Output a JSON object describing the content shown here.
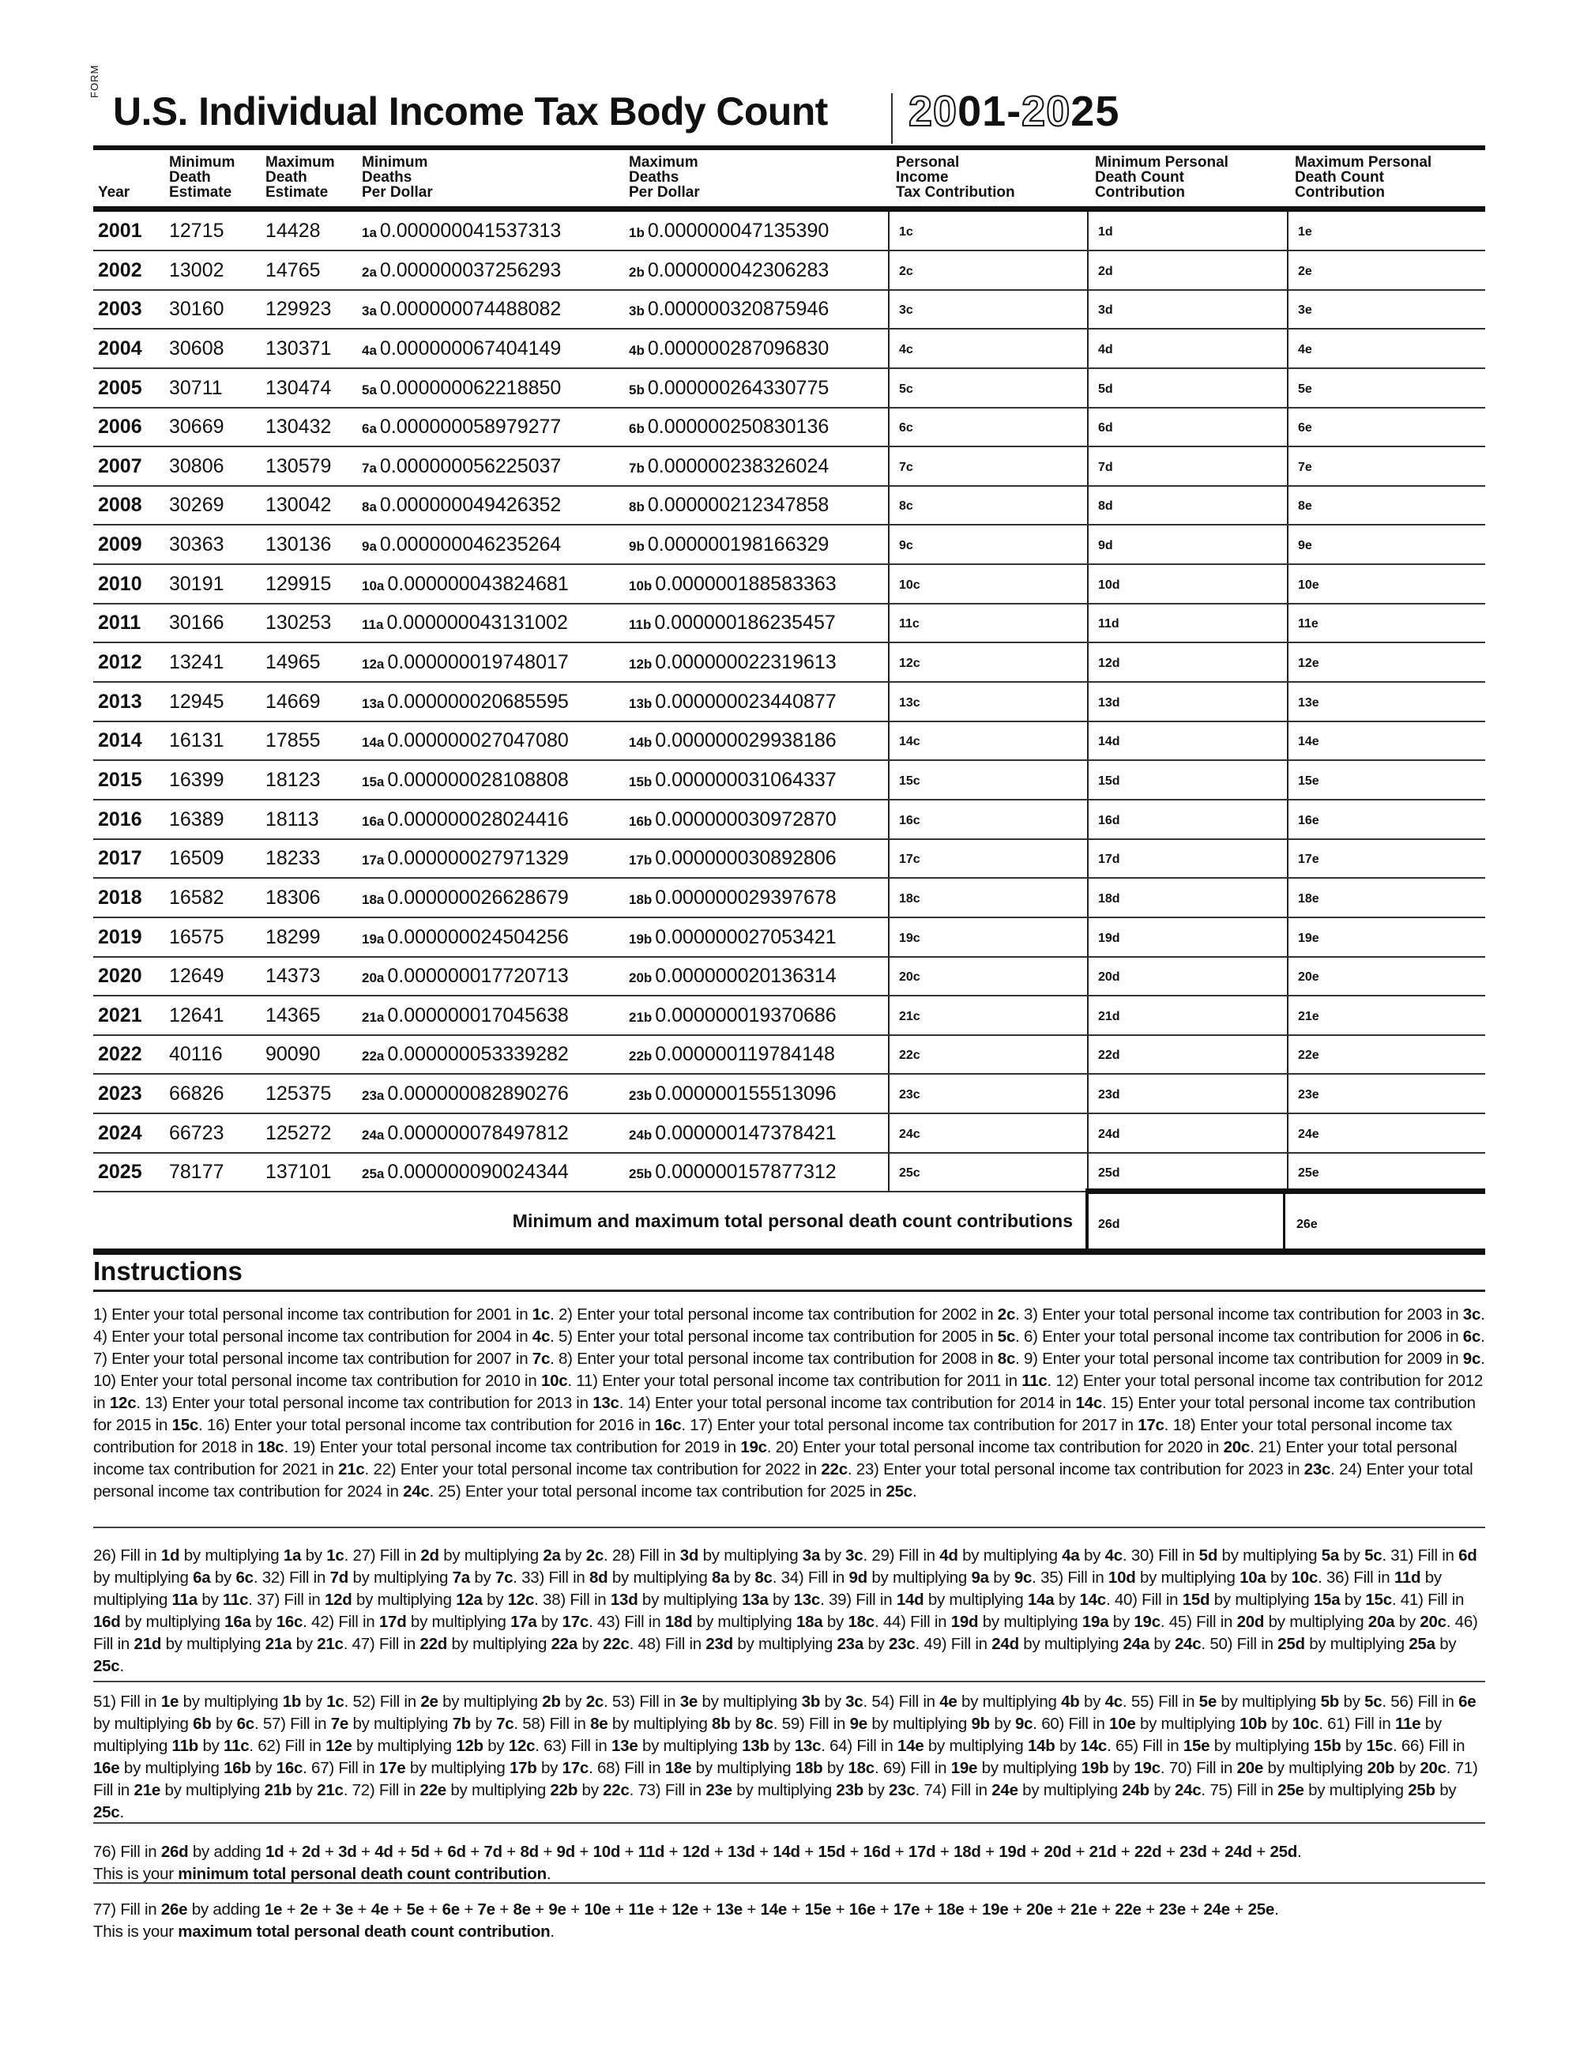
{
  "form_word": "FORM",
  "title": "U.S. Individual Income Tax Body Count",
  "title_years": "2001-2025",
  "columns": [
    "Year",
    "Minimum\nDeath\nEstimate",
    "Maximum\nDeath\nEstimate",
    "Minimum\nDeaths\nPer Dollar",
    "Maximum\nDeaths\nPer Dollar",
    "Personal\nIncome\nTax Contribution",
    "Minimum Personal\nDeath Count\nContribution",
    "Maximum Personal\nDeath Count\nContribution"
  ],
  "rows": [
    [
      "2001",
      "12715",
      "14428",
      "1a",
      "0.000000041537313",
      "1b",
      "0.000000047135390",
      "1c",
      "1d",
      "1e"
    ],
    [
      "2002",
      "13002",
      "14765",
      "2a",
      "0.000000037256293",
      "2b",
      "0.000000042306283",
      "2c",
      "2d",
      "2e"
    ],
    [
      "2003",
      "30160",
      "129923",
      "3a",
      "0.000000074488082",
      "3b",
      "0.000000320875946",
      "3c",
      "3d",
      "3e"
    ],
    [
      "2004",
      "30608",
      "130371",
      "4a",
      "0.000000067404149",
      "4b",
      "0.000000287096830",
      "4c",
      "4d",
      "4e"
    ],
    [
      "2005",
      "30711",
      "130474",
      "5a",
      "0.000000062218850",
      "5b",
      "0.000000264330775",
      "5c",
      "5d",
      "5e"
    ],
    [
      "2006",
      "30669",
      "130432",
      "6a",
      "0.000000058979277",
      "6b",
      "0.000000250830136",
      "6c",
      "6d",
      "6e"
    ],
    [
      "2007",
      "30806",
      "130579",
      "7a",
      "0.000000056225037",
      "7b",
      "0.000000238326024",
      "7c",
      "7d",
      "7e"
    ],
    [
      "2008",
      "30269",
      "130042",
      "8a",
      "0.000000049426352",
      "8b",
      "0.000000212347858",
      "8c",
      "8d",
      "8e"
    ],
    [
      "2009",
      "30363",
      "130136",
      "9a",
      "0.000000046235264",
      "9b",
      "0.000000198166329",
      "9c",
      "9d",
      "9e"
    ],
    [
      "2010",
      "30191",
      "129915",
      "10a",
      "0.000000043824681",
      "10b",
      "0.000000188583363",
      "10c",
      "10d",
      "10e"
    ],
    [
      "2011",
      "30166",
      "130253",
      "11a",
      "0.000000043131002",
      "11b",
      "0.000000186235457",
      "11c",
      "11d",
      "11e"
    ],
    [
      "2012",
      "13241",
      "14965",
      "12a",
      "0.000000019748017",
      "12b",
      "0.000000022319613",
      "12c",
      "12d",
      "12e"
    ],
    [
      "2013",
      "12945",
      "14669",
      "13a",
      "0.000000020685595",
      "13b",
      "0.000000023440877",
      "13c",
      "13d",
      "13e"
    ],
    [
      "2014",
      "16131",
      "17855",
      "14a",
      "0.000000027047080",
      "14b",
      "0.000000029938186",
      "14c",
      "14d",
      "14e"
    ],
    [
      "2015",
      "16399",
      "18123",
      "15a",
      "0.000000028108808",
      "15b",
      "0.000000031064337",
      "15c",
      "15d",
      "15e"
    ],
    [
      "2016",
      "16389",
      "18113",
      "16a",
      "0.000000028024416",
      "16b",
      "0.000000030972870",
      "16c",
      "16d",
      "16e"
    ],
    [
      "2017",
      "16509",
      "18233",
      "17a",
      "0.000000027971329",
      "17b",
      "0.000000030892806",
      "17c",
      "17d",
      "17e"
    ],
    [
      "2018",
      "16582",
      "18306",
      "18a",
      "0.000000026628679",
      "18b",
      "0.000000029397678",
      "18c",
      "18d",
      "18e"
    ],
    [
      "2019",
      "16575",
      "18299",
      "19a",
      "0.000000024504256",
      "19b",
      "0.000000027053421",
      "19c",
      "19d",
      "19e"
    ],
    [
      "2020",
      "12649",
      "14373",
      "20a",
      "0.000000017720713",
      "20b",
      "0.000000020136314",
      "20c",
      "20d",
      "20e"
    ],
    [
      "2021",
      "12641",
      "14365",
      "21a",
      "0.000000017045638",
      "21b",
      "0.000000019370686",
      "21c",
      "21d",
      "21e"
    ],
    [
      "2022",
      "40116",
      "90090",
      "22a",
      "0.000000053339282",
      "22b",
      "0.000000119784148",
      "22c",
      "22d",
      "22e"
    ],
    [
      "2023",
      "66826",
      "125375",
      "23a",
      "0.000000082890276",
      "23b",
      "0.000000155513096",
      "23c",
      "23d",
      "23e"
    ],
    [
      "2024",
      "66723",
      "125272",
      "24a",
      "0.000000078497812",
      "24b",
      "0.000000147378421",
      "24c",
      "24d",
      "24e"
    ],
    [
      "2025",
      "78177",
      "137101",
      "25a",
      "0.000000090024344",
      "25b",
      "0.000000157877312",
      "25c",
      "25d",
      "25e"
    ]
  ],
  "totals": {
    "label": "Minimum and maximum total personal death count contributions",
    "min_field": "26d",
    "max_field": "26e"
  },
  "instructions": {
    "title": "Instructions",
    "paragraphs": [
      [
        [
          "1) Enter your total personal income tax contribution for 2001 in ",
          "1c",
          ". 2) Enter your total personal income tax contribution for 2002 in ",
          "2c",
          ". 3) Enter your total personal income tax contribution for 2003 in ",
          "3c",
          ". 4) Enter your total personal income tax contribution for 2004 in ",
          "4c",
          ". 5) Enter your total personal income tax contribution for 2005 in ",
          "5c",
          ". 6) Enter your total personal income tax contribution for 2006 in ",
          "6c",
          ". 7) Enter your total personal income tax contribution for 2007 in ",
          "7c",
          ". 8) Enter your total personal income tax contribution for 2008 in ",
          "8c",
          ". 9) Enter your total personal income tax contribution for 2009 in ",
          "9c",
          ". 10) Enter your total personal income tax contribution for 2010 in ",
          "10c",
          ". 11) Enter your total personal income tax contribution for 2011 in ",
          "11c",
          ". 12) Enter your total personal income tax contribution for 2012 in ",
          "12c",
          ". 13) Enter your total personal income tax contribution for 2013 in ",
          "13c",
          ". 14) Enter your total personal income tax contribution for 2014 in ",
          "14c",
          ". 15) Enter your total personal income tax contribution for 2015 in ",
          "15c",
          ". 16) Enter your total personal income tax contribution for 2016 in ",
          "16c",
          ". 17) Enter your total personal income tax contribution for 2017 in ",
          "17c",
          ". 18) Enter your total personal income tax contribution for 2018 in ",
          "18c",
          ". 19) Enter your total personal income tax contribution for 2019 in ",
          "19c",
          ". 20) Enter your total personal income tax contribution for 2020 in ",
          "20c",
          ". 21) Enter your total personal income tax contribution for 2021 in ",
          "21c",
          ". 22) Enter your total personal income tax contribution for 2022 in ",
          "22c",
          ". 23) Enter your total personal income tax contribution for 2023 in ",
          "23c",
          ". 24) Enter your total personal income tax contribution for 2024 in ",
          "24c",
          ". 25) Enter your total personal income tax contribution for 2025 in ",
          "25c",
          "."
        ]
      ],
      [
        [
          "26) Fill in ",
          "1d",
          " by multiplying ",
          "1a",
          " by ",
          "1c",
          ". 27) Fill in ",
          "2d",
          " by multiplying ",
          "2a",
          " by ",
          "2c",
          ". 28) Fill in ",
          "3d",
          " by multiplying ",
          "3a",
          " by ",
          "3c",
          ". 29) Fill in ",
          "4d",
          " by multiplying ",
          "4a",
          " by ",
          "4c",
          ". 30) Fill in ",
          "5d",
          " by multiplying ",
          "5a",
          " by ",
          "5c",
          ". 31) Fill in ",
          "6d",
          " by multiplying ",
          "6a",
          " by ",
          "6c",
          ". 32) Fill in ",
          "7d",
          " by multiplying ",
          "7a",
          " by ",
          "7c",
          ". 33) Fill in ",
          "8d",
          " by multiplying ",
          "8a",
          " by ",
          "8c",
          ". 34) Fill in ",
          "9d",
          " by multiplying ",
          "9a",
          " by ",
          "9c",
          ". 35) Fill in ",
          "10d",
          " by multiplying ",
          "10a",
          " by ",
          "10c",
          ". 36) Fill in ",
          "11d",
          " by multiplying ",
          "11a",
          " by ",
          "11c",
          ". 37) Fill in ",
          "12d",
          " by multiplying ",
          "12a",
          " by ",
          "12c",
          ". 38) Fill in ",
          "13d",
          " by multiplying ",
          "13a",
          " by ",
          "13c",
          ". 39) Fill in ",
          "14d",
          " by multiplying ",
          "14a",
          " by ",
          "14c",
          ". 40) Fill in ",
          "15d",
          " by multiplying ",
          "15a",
          " by ",
          "15c",
          ". 41) Fill in ",
          "16d",
          " by multiplying ",
          "16a",
          " by ",
          "16c",
          ". 42) Fill in ",
          "17d",
          " by multiplying ",
          "17a",
          " by ",
          "17c",
          ". 43) Fill in ",
          "18d",
          " by multiplying ",
          "18a",
          " by ",
          "18c",
          ". 44) Fill in ",
          "19d",
          " by multiplying ",
          "19a",
          " by ",
          "19c",
          ". 45) Fill in ",
          "20d",
          " by multiplying ",
          "20a",
          " by ",
          "20c",
          ". 46) Fill in ",
          "21d",
          " by multiplying ",
          "21a",
          " by ",
          "21c",
          ". 47) Fill in ",
          "22d",
          " by multiplying ",
          "22a",
          " by ",
          "22c",
          ". 48) Fill in ",
          "23d",
          " by multiplying ",
          "23a",
          " by ",
          "23c",
          ". 49) Fill in ",
          "24d",
          " by multiplying ",
          "24a",
          " by ",
          "24c",
          ". 50) Fill in ",
          "25d",
          " by multiplying ",
          "25a",
          " by ",
          "25c",
          "."
        ]
      ],
      [
        [
          "51) Fill in ",
          "1e",
          " by multiplying ",
          "1b",
          " by ",
          "1c",
          ". 52) Fill in ",
          "2e",
          " by multiplying ",
          "2b",
          " by ",
          "2c",
          ". 53) Fill in ",
          "3e",
          " by multiplying ",
          "3b",
          " by ",
          "3c",
          ". 54) Fill in ",
          "4e",
          " by multiplying ",
          "4b",
          " by ",
          "4c",
          ". 55) Fill in ",
          "5e",
          " by multiplying ",
          "5b",
          " by ",
          "5c",
          ". 56) Fill in ",
          "6e",
          " by multiplying ",
          "6b",
          " by ",
          "6c",
          ". 57) Fill in ",
          "7e",
          " by multiplying ",
          "7b",
          " by ",
          "7c",
          ". 58) Fill in ",
          "8e",
          " by multiplying ",
          "8b",
          " by ",
          "8c",
          ". 59) Fill in ",
          "9e",
          " by multiplying ",
          "9b",
          " by ",
          "9c",
          ". 60) Fill in ",
          "10e",
          " by multiplying ",
          "10b",
          " by ",
          "10c",
          ". 61) Fill in ",
          "11e",
          " by multiplying ",
          "11b",
          " by ",
          "11c",
          ". 62) Fill in ",
          "12e",
          " by multiplying ",
          "12b",
          " by ",
          "12c",
          ". 63) Fill in ",
          "13e",
          " by multiplying ",
          "13b",
          " by ",
          "13c",
          ". 64) Fill in ",
          "14e",
          " by multiplying ",
          "14b",
          " by ",
          "14c",
          ". 65) Fill in ",
          "15e",
          " by multiplying ",
          "15b",
          " by ",
          "15c",
          ". 66) Fill in ",
          "16e",
          " by multiplying ",
          "16b",
          " by ",
          "16c",
          ". 67) Fill in ",
          "17e",
          " by multiplying ",
          "17b",
          " by ",
          "17c",
          ". 68) Fill in ",
          "18e",
          " by multiplying ",
          "18b",
          " by ",
          "18c",
          ". 69) Fill in ",
          "19e",
          " by multiplying ",
          "19b",
          " by ",
          "19c",
          ". 70) Fill in ",
          "20e",
          " by multiplying ",
          "20b",
          " by ",
          "20c",
          ". 71) Fill in ",
          "21e",
          " by multiplying ",
          "21b",
          " by ",
          "21c",
          ". 72) Fill in ",
          "22e",
          " by multiplying ",
          "22b",
          " by ",
          "22c",
          ". 73) Fill in ",
          "23e",
          " by multiplying ",
          "23b",
          " by ",
          "23c",
          ". 74) Fill in ",
          "24e",
          " by multiplying ",
          "24b",
          " by ",
          "24c",
          ". 75) Fill in ",
          "25e",
          " by multiplying ",
          "25b",
          " by ",
          "25c",
          "."
        ]
      ],
      [
        [
          "76) Fill in ",
          "26d",
          " by adding ",
          "1d",
          " + ",
          "2d",
          " + ",
          "3d",
          " + ",
          "4d",
          " + ",
          "5d",
          " + ",
          "6d",
          " + ",
          "7d",
          " + ",
          "8d",
          " + ",
          "9d",
          " + ",
          "10d",
          " + ",
          "11d",
          " + ",
          "12d",
          " + ",
          "13d",
          " + ",
          "14d",
          " + ",
          "15d",
          " + ",
          "16d",
          " + ",
          "17d",
          " + ",
          "18d",
          " + ",
          "19d",
          " + ",
          "20d",
          " + ",
          "21d",
          " + ",
          "22d",
          " + ",
          "23d",
          " + ",
          "24d",
          " + ",
          "25d",
          "."
        ],
        [
          "This is your ",
          "minimum total personal death count contribution",
          "."
        ]
      ],
      [
        [
          "77) Fill in ",
          "26e",
          " by adding ",
          "1e",
          " + ",
          "2e",
          " + ",
          "3e",
          " + ",
          "4e",
          " + ",
          "5e",
          " + ",
          "6e",
          " + ",
          "7e",
          " + ",
          "8e",
          " + ",
          "9e",
          " + ",
          "10e",
          " + ",
          "11e",
          " + ",
          "12e",
          " + ",
          "13e",
          " + ",
          "14e",
          " + ",
          "15e",
          " + ",
          "16e",
          " + ",
          "17e",
          " + ",
          "18e",
          " + ",
          "19e",
          " + ",
          "20e",
          " + ",
          "21e",
          " + ",
          "22e",
          " + ",
          "23e",
          " + ",
          "24e",
          " + ",
          "25e",
          "."
        ],
        [
          "This is your ",
          "maximum total personal death count contribution",
          "."
        ]
      ]
    ]
  }
}
